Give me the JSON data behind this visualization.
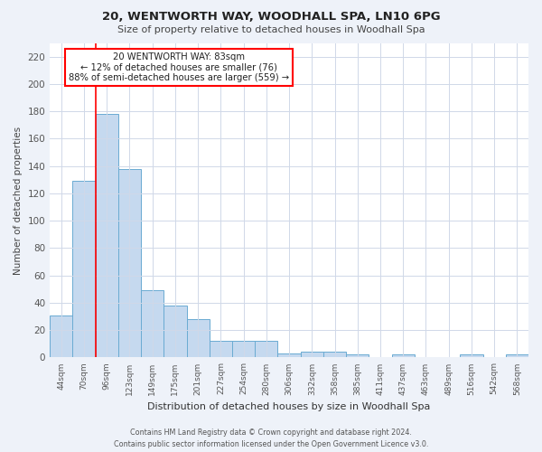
{
  "title": "20, WENTWORTH WAY, WOODHALL SPA, LN10 6PG",
  "subtitle": "Size of property relative to detached houses in Woodhall Spa",
  "xlabel": "Distribution of detached houses by size in Woodhall Spa",
  "ylabel": "Number of detached properties",
  "footnote1": "Contains HM Land Registry data © Crown copyright and database right 2024.",
  "footnote2": "Contains public sector information licensed under the Open Government Licence v3.0.",
  "bar_labels": [
    "44sqm",
    "70sqm",
    "96sqm",
    "123sqm",
    "149sqm",
    "175sqm",
    "201sqm",
    "227sqm",
    "254sqm",
    "280sqm",
    "306sqm",
    "332sqm",
    "358sqm",
    "385sqm",
    "411sqm",
    "437sqm",
    "463sqm",
    "489sqm",
    "516sqm",
    "542sqm",
    "568sqm"
  ],
  "bar_values": [
    31,
    129,
    178,
    138,
    49,
    38,
    28,
    12,
    12,
    12,
    3,
    4,
    4,
    2,
    0,
    2,
    0,
    0,
    2,
    0,
    2
  ],
  "bar_color": "#c5d9ef",
  "bar_edge_color": "#6aabd2",
  "annotation_box_text": "20 WENTWORTH WAY: 83sqm\n← 12% of detached houses are smaller (76)\n88% of semi-detached houses are larger (559) →",
  "ylim": [
    0,
    230
  ],
  "yticks": [
    0,
    20,
    40,
    60,
    80,
    100,
    120,
    140,
    160,
    180,
    200,
    220
  ],
  "bg_color": "#eef2f9",
  "plot_bg_color": "#ffffff",
  "grid_color": "#d0d8e8"
}
